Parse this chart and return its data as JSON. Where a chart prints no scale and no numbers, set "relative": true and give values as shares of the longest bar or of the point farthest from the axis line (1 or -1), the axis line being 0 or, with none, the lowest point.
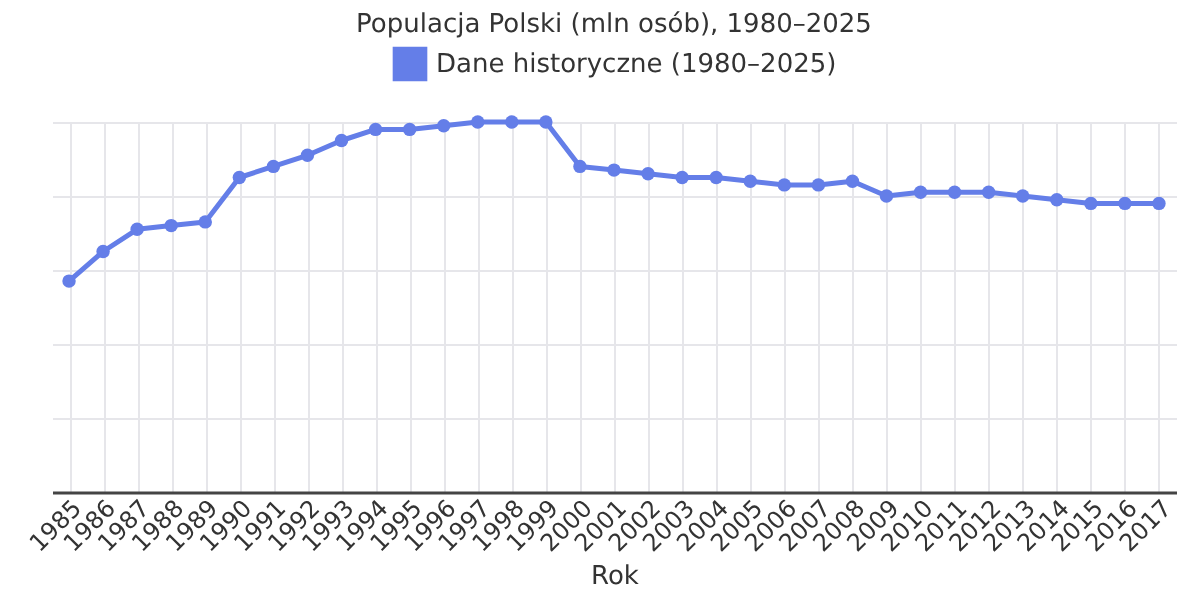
{
  "chart_data": {
    "type": "line",
    "title": "Populacja Polski (mln osób), 1980–2025",
    "xlabel": "Rok",
    "relative": true,
    "categories": [
      "1985",
      "1986",
      "1987",
      "1988",
      "1989",
      "1990",
      "1991",
      "1992",
      "1993",
      "1994",
      "1995",
      "1996",
      "1997",
      "1998",
      "1999",
      "2000",
      "2001",
      "2002",
      "2003",
      "2004",
      "2005",
      "2006",
      "2007",
      "2008",
      "2009",
      "2010",
      "2011",
      "2012",
      "2013",
      "2014",
      "2015",
      "2016",
      "2017"
    ],
    "series": [
      {
        "name": "Dane historyczne (1980–2025)",
        "color": "#647ee8",
        "values": [
          0.57,
          0.65,
          0.71,
          0.72,
          0.73,
          0.85,
          0.88,
          0.91,
          0.95,
          0.98,
          0.98,
          0.99,
          1,
          1,
          1,
          0.88,
          0.87,
          0.86,
          0.85,
          0.85,
          0.84,
          0.83,
          0.83,
          0.84,
          0.8,
          0.81,
          0.81,
          0.81,
          0.8,
          0.79,
          0.78,
          0.78,
          0.78
        ]
      }
    ],
    "grid": true,
    "legend": "top",
    "marker": "circle",
    "line_style": "solid"
  }
}
